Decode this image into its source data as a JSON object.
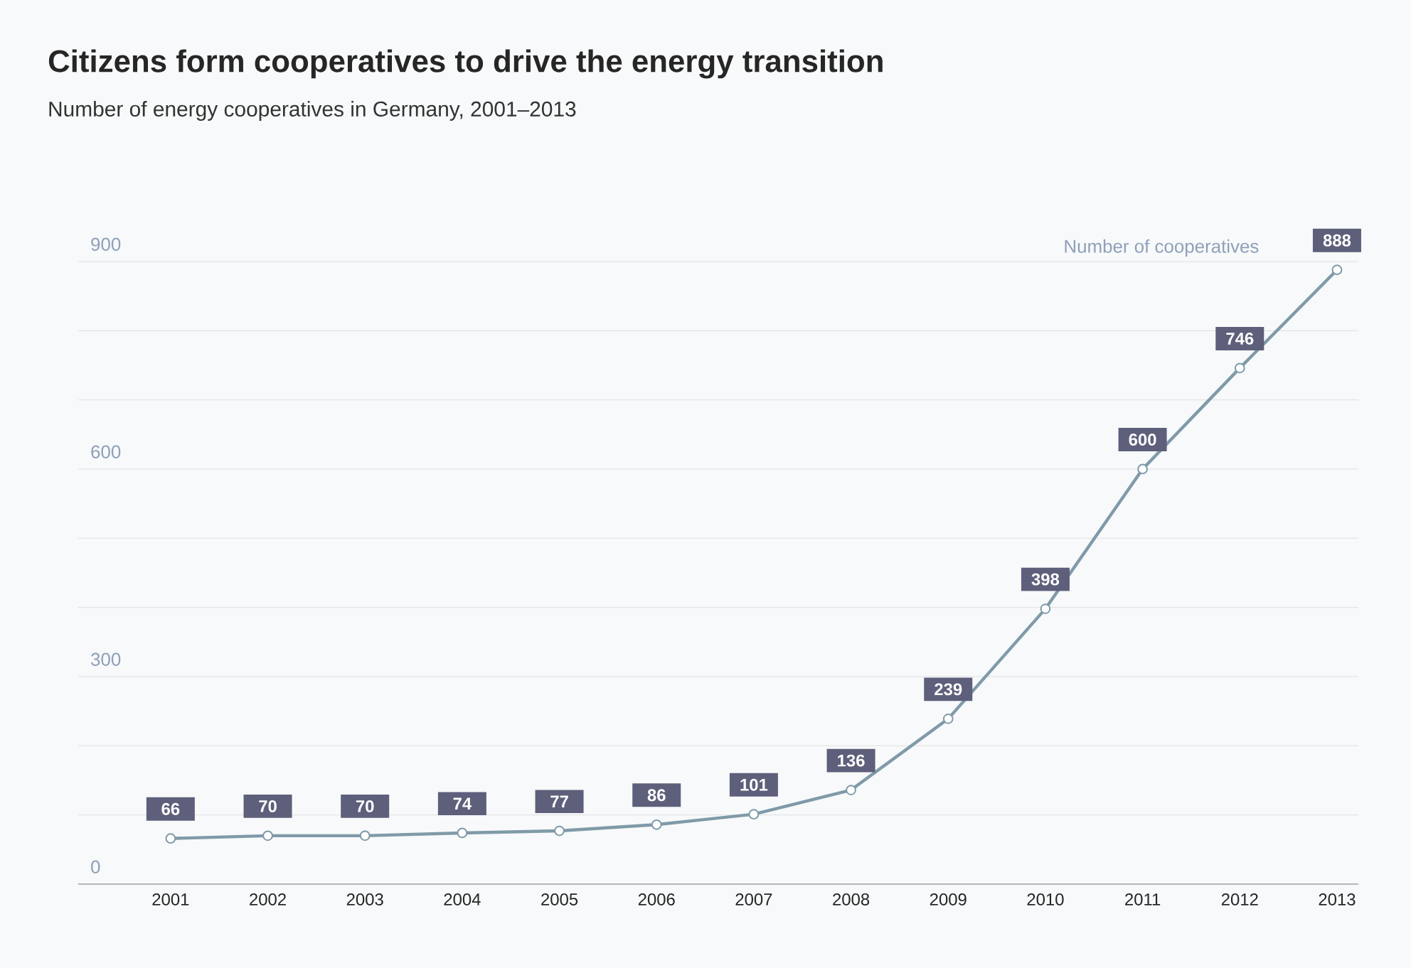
{
  "chart_data": {
    "type": "line",
    "title": "Citizens form cooperatives to drive the energy transition",
    "subtitle": "Number of energy cooperatives in Germany, 2001–2013",
    "categories": [
      "2001",
      "2002",
      "2003",
      "2004",
      "2005",
      "2006",
      "2007",
      "2008",
      "2009",
      "2010",
      "2011",
      "2012",
      "2013"
    ],
    "series": [
      {
        "name": "Number of cooperatives",
        "color": "#7f9aa8",
        "values": [
          66,
          70,
          70,
          74,
          77,
          86,
          101,
          136,
          239,
          398,
          600,
          746,
          888
        ]
      }
    ],
    "ylim": [
      0,
      900
    ],
    "yticks": [
      0,
      {
        "value": 100,
        "label": null
      },
      {
        "value": 200,
        "label": null
      },
      300,
      {
        "value": 400,
        "label": null
      },
      {
        "value": 500,
        "label": null
      },
      600,
      {
        "value": 700,
        "label": null
      },
      {
        "value": 800,
        "label": null
      },
      900
    ],
    "grid": "y",
    "data_labels": true,
    "marker": "circle",
    "line_style": "solid"
  }
}
